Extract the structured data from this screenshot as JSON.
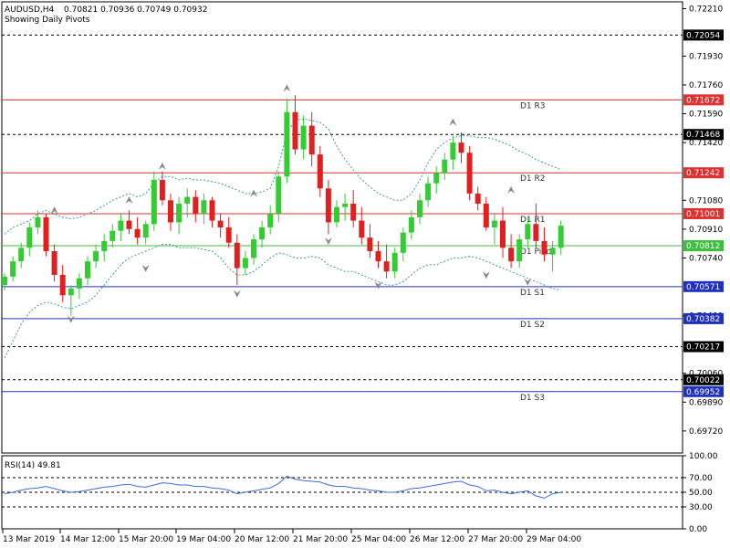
{
  "header": {
    "symbol": "AUDUSD,H4",
    "ohlc": "0.70821 0.70936 0.70749 0.70932",
    "indicator_note": "Showing Daily Pivots"
  },
  "chart_data": {
    "type": "candlestick",
    "price_range": [
      0.6959,
      0.7225
    ],
    "price_ticks": [
      "0.72210",
      "0.71930",
      "0.71760",
      "0.71590",
      "0.71420",
      "0.71080",
      "0.70910",
      "0.70740",
      "0.70400",
      "0.70060",
      "0.69890",
      "0.69720"
    ],
    "pivot_levels": [
      {
        "name": "D1 R3",
        "value": 0.71672,
        "label": "0.71672",
        "color": "#e03030",
        "style": "solid"
      },
      {
        "name": "D1 R2",
        "value": 0.71242,
        "label": "0.71242",
        "color": "#e03030",
        "style": "solid"
      },
      {
        "name": "D1 R1",
        "value": 0.71001,
        "label": "0.71001",
        "color": "#e03030",
        "style": "solid"
      },
      {
        "name": "D1 Pivot",
        "value": 0.70812,
        "label": "0.70812",
        "color": "#3cbf3c",
        "style": "solid"
      },
      {
        "name": "D1 S1",
        "value": 0.70571,
        "label": "0.70571",
        "color": "#2030c0",
        "style": "solid"
      },
      {
        "name": "D1 S2",
        "value": 0.70382,
        "label": "0.70382",
        "color": "#2030c0",
        "style": "solid"
      },
      {
        "name": "D1 S3",
        "value": 0.69952,
        "label": "0.69952",
        "color": "#2030c0",
        "style": "solid"
      }
    ],
    "dashed_levels": [
      {
        "value": 0.72054,
        "label": "0.72054"
      },
      {
        "value": 0.71468,
        "label": "0.71468"
      },
      {
        "value": 0.70217,
        "label": "0.70217"
      },
      {
        "value": 0.70022,
        "label": "0.70022"
      }
    ],
    "x_ticks": [
      "13 Mar 2019",
      "14 Mar 12:00",
      "15 Mar 20:00",
      "19 Mar 04:00",
      "20 Mar 12:00",
      "21 Mar 20:00",
      "25 Mar 04:00",
      "26 Mar 12:00",
      "27 Mar 20:00",
      "29 Mar 04:00"
    ],
    "candles": [
      [
        0.7058,
        0.7065,
        0.7055,
        0.7063
      ],
      [
        0.7063,
        0.7075,
        0.706,
        0.7072
      ],
      [
        0.7072,
        0.7083,
        0.7068,
        0.708
      ],
      [
        0.708,
        0.7095,
        0.7075,
        0.7092
      ],
      [
        0.7092,
        0.7102,
        0.7088,
        0.7098
      ],
      [
        0.7098,
        0.71,
        0.7075,
        0.7078
      ],
      [
        0.7078,
        0.7082,
        0.706,
        0.7064
      ],
      [
        0.7064,
        0.707,
        0.7048,
        0.7052
      ],
      [
        0.7052,
        0.7058,
        0.704,
        0.7056
      ],
      [
        0.7056,
        0.7065,
        0.705,
        0.7062
      ],
      [
        0.7062,
        0.7075,
        0.7058,
        0.7072
      ],
      [
        0.7072,
        0.7082,
        0.7068,
        0.7078
      ],
      [
        0.7078,
        0.7088,
        0.7072,
        0.7084
      ],
      [
        0.7084,
        0.7094,
        0.708,
        0.709
      ],
      [
        0.709,
        0.71,
        0.7084,
        0.7096
      ],
      [
        0.7096,
        0.7102,
        0.7088,
        0.7091
      ],
      [
        0.7091,
        0.7098,
        0.7082,
        0.7086
      ],
      [
        0.7086,
        0.7096,
        0.7082,
        0.7094
      ],
      [
        0.7094,
        0.7125,
        0.709,
        0.712
      ],
      [
        0.712,
        0.7125,
        0.7105,
        0.7108
      ],
      [
        0.7108,
        0.7112,
        0.709,
        0.7095
      ],
      [
        0.7095,
        0.711,
        0.7088,
        0.7106
      ],
      [
        0.7106,
        0.7115,
        0.7098,
        0.711
      ],
      [
        0.711,
        0.7114,
        0.7095,
        0.71
      ],
      [
        0.71,
        0.7112,
        0.7094,
        0.7108
      ],
      [
        0.7108,
        0.711,
        0.7092,
        0.7096
      ],
      [
        0.7096,
        0.71,
        0.7086,
        0.7092
      ],
      [
        0.7092,
        0.7098,
        0.708,
        0.7083
      ],
      [
        0.7083,
        0.7088,
        0.7058,
        0.7068
      ],
      [
        0.7068,
        0.7078,
        0.7064,
        0.7074
      ],
      [
        0.7074,
        0.7088,
        0.707,
        0.7085
      ],
      [
        0.7085,
        0.7096,
        0.708,
        0.7092
      ],
      [
        0.7092,
        0.7105,
        0.7088,
        0.71
      ],
      [
        0.71,
        0.7125,
        0.7095,
        0.7122
      ],
      [
        0.7122,
        0.7168,
        0.7118,
        0.716
      ],
      [
        0.716,
        0.717,
        0.7135,
        0.7138
      ],
      [
        0.7138,
        0.7158,
        0.7132,
        0.7152
      ],
      [
        0.7152,
        0.716,
        0.7128,
        0.7135
      ],
      [
        0.7135,
        0.714,
        0.711,
        0.7115
      ],
      [
        0.7115,
        0.712,
        0.7088,
        0.7095
      ],
      [
        0.7095,
        0.7108,
        0.7092,
        0.7104
      ],
      [
        0.7104,
        0.7112,
        0.7096,
        0.7106
      ],
      [
        0.7106,
        0.7114,
        0.7092,
        0.7096
      ],
      [
        0.7096,
        0.7104,
        0.7082,
        0.7086
      ],
      [
        0.7086,
        0.7094,
        0.7074,
        0.7078
      ],
      [
        0.7078,
        0.7084,
        0.7068,
        0.7072
      ],
      [
        0.7072,
        0.7082,
        0.7062,
        0.7066
      ],
      [
        0.7066,
        0.708,
        0.7062,
        0.7077
      ],
      [
        0.7077,
        0.7092,
        0.7072,
        0.7089
      ],
      [
        0.7089,
        0.7102,
        0.7085,
        0.7098
      ],
      [
        0.7098,
        0.7112,
        0.7094,
        0.7108
      ],
      [
        0.7108,
        0.7122,
        0.7104,
        0.7118
      ],
      [
        0.7118,
        0.7128,
        0.7112,
        0.7124
      ],
      [
        0.7124,
        0.7136,
        0.712,
        0.7132
      ],
      [
        0.7132,
        0.7146,
        0.7126,
        0.7142
      ],
      [
        0.7142,
        0.7148,
        0.713,
        0.7136
      ],
      [
        0.7136,
        0.714,
        0.7108,
        0.7112
      ],
      [
        0.7112,
        0.7116,
        0.7102,
        0.7106
      ],
      [
        0.7106,
        0.711,
        0.709,
        0.7092
      ],
      [
        0.7092,
        0.71,
        0.7082,
        0.7096
      ],
      [
        0.7096,
        0.7104,
        0.7074,
        0.708
      ],
      [
        0.708,
        0.7088,
        0.7068,
        0.7072
      ],
      [
        0.7072,
        0.7088,
        0.7068,
        0.7085
      ],
      [
        0.7085,
        0.7098,
        0.708,
        0.7094
      ],
      [
        0.7094,
        0.7106,
        0.708,
        0.7084
      ],
      [
        0.7084,
        0.7092,
        0.7072,
        0.7076
      ],
      [
        0.7076,
        0.7084,
        0.7066,
        0.708
      ],
      [
        0.708,
        0.7096,
        0.7076,
        0.7093
      ]
    ],
    "upper_band": [
      0.7088,
      0.7092,
      0.7094,
      0.7096,
      0.71,
      0.7102,
      0.71,
      0.7098,
      0.7097,
      0.7098,
      0.71,
      0.7102,
      0.7105,
      0.7108,
      0.711,
      0.7112,
      0.711,
      0.7112,
      0.7118,
      0.7122,
      0.7122,
      0.712,
      0.7121,
      0.712,
      0.712,
      0.7119,
      0.7118,
      0.7116,
      0.7114,
      0.7112,
      0.7112,
      0.7113,
      0.7115,
      0.7128,
      0.7148,
      0.7155,
      0.7156,
      0.7155,
      0.7154,
      0.715,
      0.714,
      0.7132,
      0.7126,
      0.712,
      0.7116,
      0.7112,
      0.711,
      0.7108,
      0.7108,
      0.7112,
      0.712,
      0.713,
      0.7138,
      0.7142,
      0.7145,
      0.7146,
      0.7146,
      0.7145,
      0.7145,
      0.7144,
      0.7142,
      0.714,
      0.7137,
      0.7135,
      0.7132,
      0.713,
      0.7128,
      0.7126
    ],
    "lower_band": [
      0.7015,
      0.7025,
      0.7035,
      0.7042,
      0.7046,
      0.7048,
      0.7047,
      0.7045,
      0.7044,
      0.7046,
      0.7048,
      0.7052,
      0.7058,
      0.7064,
      0.707,
      0.7074,
      0.7076,
      0.7078,
      0.708,
      0.7082,
      0.7082,
      0.708,
      0.708,
      0.708,
      0.7079,
      0.7078,
      0.7074,
      0.7068,
      0.7064,
      0.7064,
      0.7066,
      0.707,
      0.7074,
      0.7077,
      0.7076,
      0.7074,
      0.7074,
      0.7075,
      0.7074,
      0.707,
      0.7068,
      0.7066,
      0.7066,
      0.7064,
      0.7062,
      0.706,
      0.7058,
      0.7058,
      0.706,
      0.7064,
      0.7068,
      0.707,
      0.707,
      0.7072,
      0.7074,
      0.7074,
      0.7075,
      0.7074,
      0.7072,
      0.707,
      0.7068,
      0.7066,
      0.7064,
      0.7062,
      0.706,
      0.7058,
      0.7056,
      0.7055
    ],
    "fractals_up": [
      [
        6,
        0.71
      ],
      [
        15,
        0.7106
      ],
      [
        19,
        0.7126
      ],
      [
        30,
        0.711
      ],
      [
        34,
        0.7172
      ],
      [
        54,
        0.7152
      ],
      [
        61,
        0.7112
      ]
    ],
    "fractals_down": [
      [
        8,
        0.704
      ],
      [
        17,
        0.707
      ],
      [
        28,
        0.7055
      ],
      [
        39,
        0.7086
      ],
      [
        45,
        0.706
      ],
      [
        58,
        0.7066
      ],
      [
        63,
        0.7062
      ]
    ],
    "rsi": {
      "label": "RSI(14) 49.81",
      "range": [
        0,
        100
      ],
      "ticks": [
        "100.00",
        "70.00",
        "50.00",
        "30.00",
        "0.00"
      ],
      "levels": [
        70,
        50,
        30
      ],
      "values": [
        48,
        50,
        53,
        55,
        56,
        58,
        55,
        52,
        50,
        51,
        53,
        55,
        57,
        58,
        60,
        61,
        58,
        57,
        60,
        63,
        62,
        60,
        60,
        58,
        58,
        56,
        55,
        53,
        48,
        50,
        52,
        54,
        56,
        62,
        72,
        68,
        66,
        65,
        64,
        60,
        58,
        58,
        56,
        55,
        53,
        52,
        50,
        50,
        52,
        55,
        56,
        58,
        60,
        62,
        64,
        65,
        60,
        58,
        52,
        53,
        50,
        48,
        50,
        52,
        45,
        42,
        48,
        50
      ]
    }
  }
}
